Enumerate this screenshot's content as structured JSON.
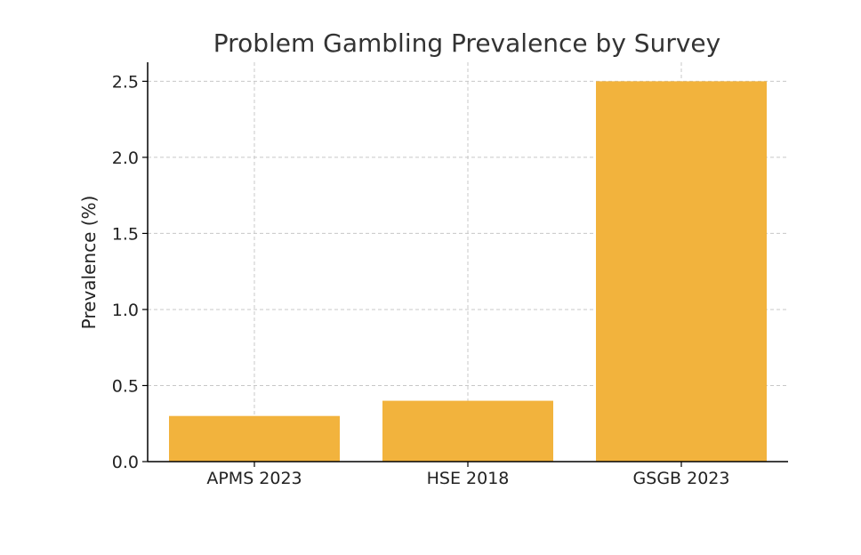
{
  "chart_data": {
    "type": "bar",
    "title": "Problem Gambling Prevalence by Survey",
    "xlabel": "",
    "ylabel": "Prevalence (%)",
    "categories": [
      "APMS 2023",
      "HSE 2018",
      "GSGB 2023"
    ],
    "values": [
      0.3,
      0.4,
      2.5
    ],
    "ylim": [
      0,
      2.625
    ],
    "yticks": [
      0.0,
      0.5,
      1.0,
      1.5,
      2.0,
      2.5
    ],
    "ytick_labels": [
      "0.0",
      "0.5",
      "1.0",
      "1.5",
      "2.0",
      "2.5"
    ],
    "grid": true,
    "bar_color": "#f2b33d"
  }
}
